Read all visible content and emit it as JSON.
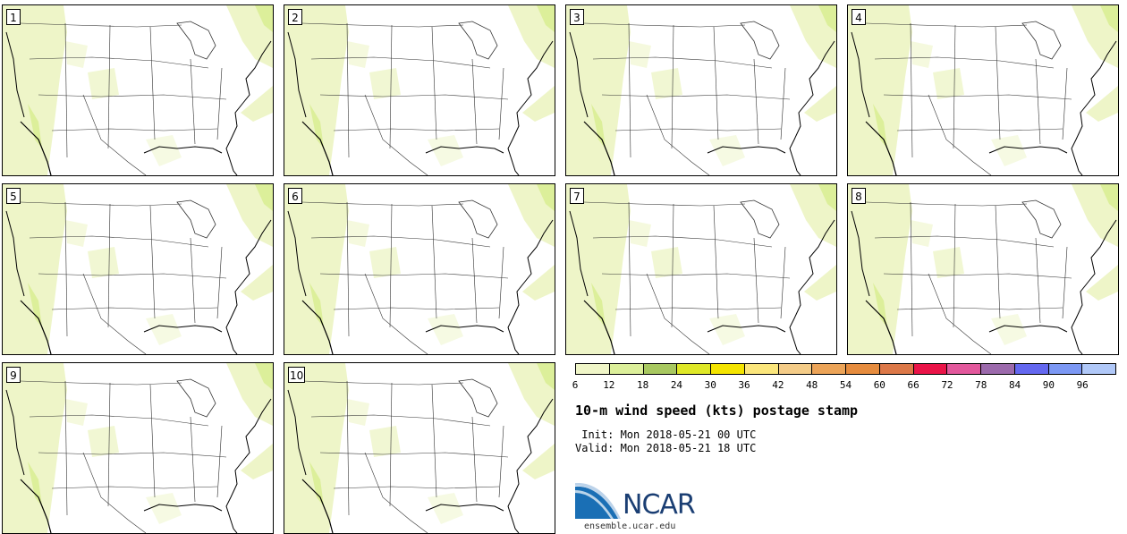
{
  "product": {
    "title": "10-m wind speed (kts) postage stamp",
    "init": " Init: Mon 2018-05-21 00 UTC",
    "valid": "Valid: Mon 2018-05-21 18 UTC"
  },
  "members": [
    "1",
    "2",
    "3",
    "4",
    "5",
    "6",
    "7",
    "8",
    "9",
    "10"
  ],
  "colorbar": {
    "ticks": [
      "6",
      "12",
      "18",
      "24",
      "30",
      "36",
      "42",
      "48",
      "54",
      "60",
      "66",
      "72",
      "78",
      "84",
      "90",
      "96"
    ],
    "colors": [
      "#f0f6c8",
      "#dcef9a",
      "#a8c860",
      "#dfe828",
      "#f4e400",
      "#fbe67c",
      "#f4cc88",
      "#eca458",
      "#e68c3e",
      "#dc7848",
      "#ea1448",
      "#e2589c",
      "#9c6aac",
      "#6468f0",
      "#7c98f4",
      "#b0c8f8"
    ]
  },
  "logo": {
    "name": "NCAR",
    "site": "ensemble.ucar.edu",
    "colors": {
      "blue": "#1a6fb5",
      "navy": "#1a3e73"
    }
  },
  "map_colors": {
    "light_wind": "#eef5c8",
    "moderate_wind": "#dcef9a",
    "coast": "#000000",
    "borders": "#333333"
  }
}
